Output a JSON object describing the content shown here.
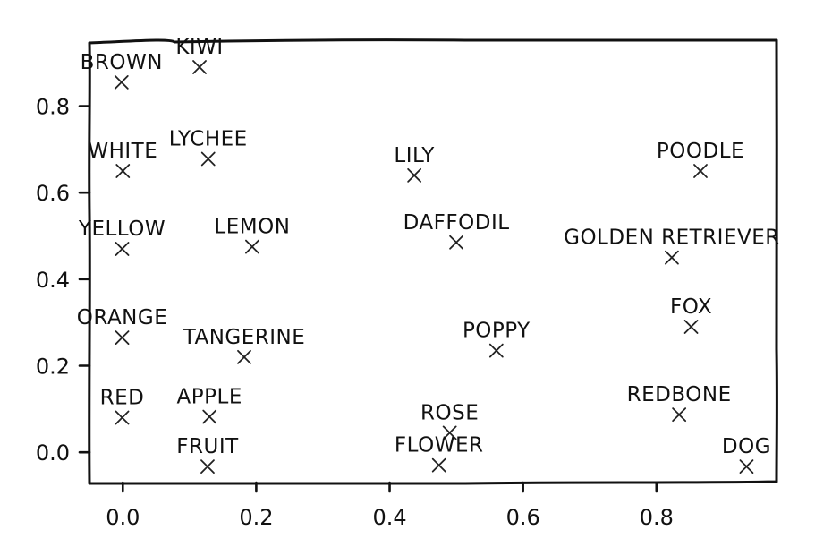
{
  "chart_data": {
    "type": "scatter",
    "title": "",
    "xlabel": "",
    "ylabel": "",
    "xlim": [
      -0.05,
      0.98
    ],
    "ylim": [
      -0.07,
      0.95
    ],
    "xticks": [
      0.0,
      0.2,
      0.4,
      0.6,
      0.8
    ],
    "yticks": [
      0.0,
      0.2,
      0.4,
      0.6,
      0.8
    ],
    "xtick_labels": [
      "0.0",
      "0.2",
      "0.4",
      "0.6",
      "0.8"
    ],
    "ytick_labels": [
      "0.0",
      "0.2",
      "0.4",
      "0.6",
      "0.8"
    ],
    "style": "xkcd",
    "grid": false,
    "marker": "x",
    "points": [
      {
        "label": "KIWI",
        "x": 0.115,
        "y": 0.89
      },
      {
        "label": "BROWN",
        "x": -0.002,
        "y": 0.855
      },
      {
        "label": "WHITE",
        "x": 0.0,
        "y": 0.65
      },
      {
        "label": "LYCHEE",
        "x": 0.128,
        "y": 0.678
      },
      {
        "label": "LILY",
        "x": 0.437,
        "y": 0.64
      },
      {
        "label": "POODLE",
        "x": 0.866,
        "y": 0.65
      },
      {
        "label": "YELLOW",
        "x": -0.001,
        "y": 0.47
      },
      {
        "label": "LEMON",
        "x": 0.194,
        "y": 0.475
      },
      {
        "label": "DAFFODIL",
        "x": 0.5,
        "y": 0.485
      },
      {
        "label": "GOLDEN RETRIEVER",
        "x": 0.823,
        "y": 0.45
      },
      {
        "label": "ORANGE",
        "x": -0.001,
        "y": 0.265
      },
      {
        "label": "TANGERINE",
        "x": 0.182,
        "y": 0.22
      },
      {
        "label": "POPPY",
        "x": 0.56,
        "y": 0.235
      },
      {
        "label": "FOX",
        "x": 0.852,
        "y": 0.29
      },
      {
        "label": "RED",
        "x": -0.001,
        "y": 0.08
      },
      {
        "label": "APPLE",
        "x": 0.13,
        "y": 0.082
      },
      {
        "label": "ROSE",
        "x": 0.49,
        "y": 0.045
      },
      {
        "label": "REDBONE",
        "x": 0.834,
        "y": 0.087
      },
      {
        "label": "FRUIT",
        "x": 0.127,
        "y": -0.033
      },
      {
        "label": "FLOWER",
        "x": 0.474,
        "y": -0.03
      },
      {
        "label": "DOG",
        "x": 0.935,
        "y": -0.033
      }
    ]
  }
}
